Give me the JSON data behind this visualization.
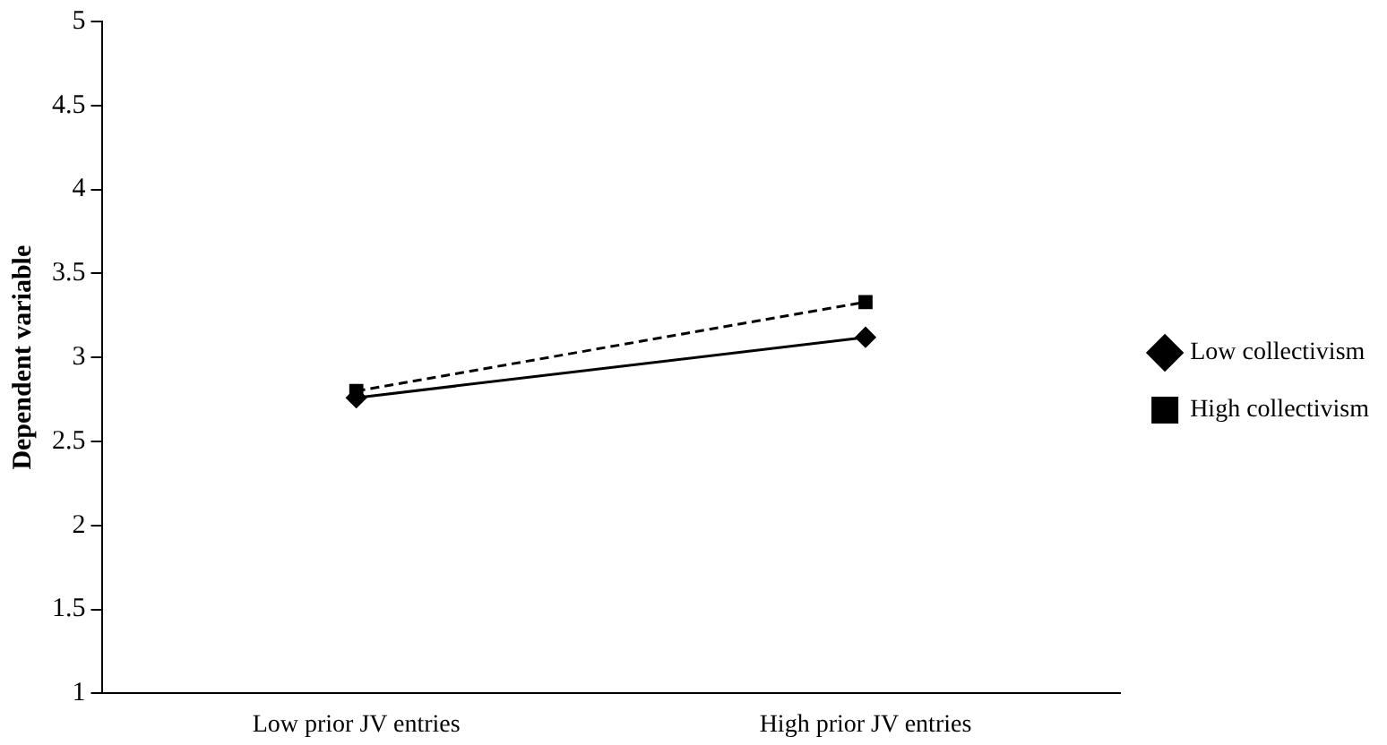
{
  "chart_data": {
    "type": "line",
    "ylabel": "Dependent variable",
    "categories": [
      "Low prior JV entries",
      "High prior JV entries"
    ],
    "series": [
      {
        "name": "Low collectivism",
        "color": "#000000",
        "values": [
          2.76,
          3.12
        ],
        "marker": "diamond",
        "line_style": "solid"
      },
      {
        "name": "High collectivism",
        "color": "#000000",
        "values": [
          2.8,
          3.33
        ],
        "marker": "square",
        "line_style": "dashed"
      }
    ],
    "ylim": [
      1,
      5
    ],
    "yticks": [
      1,
      1.5,
      2,
      2.5,
      3,
      3.5,
      4,
      4.5,
      5
    ],
    "grid": false,
    "legend": "right"
  }
}
